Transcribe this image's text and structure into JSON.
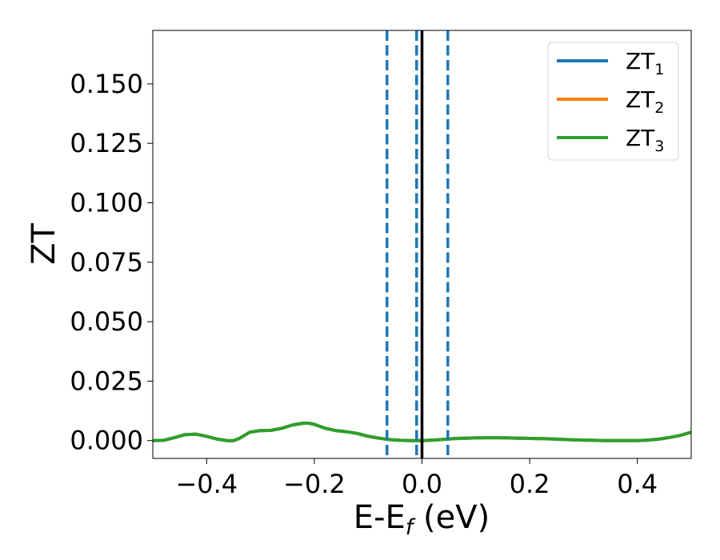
{
  "chart_data": {
    "type": "line",
    "xlabel_main": "E-E",
    "xlabel_sub": "f",
    "xlabel_unit": " (eV)",
    "ylabel": "ZT",
    "xlim": [
      -0.5,
      0.5
    ],
    "ylim": [
      -0.0075,
      0.1725
    ],
    "xticks": [
      -0.4,
      -0.2,
      0.0,
      0.2,
      0.4
    ],
    "xtick_labels": [
      "−0.4",
      "−0.2",
      "0.0",
      "0.2",
      "0.4"
    ],
    "yticks": [
      0.0,
      0.025,
      0.05,
      0.075,
      0.1,
      0.125,
      0.15
    ],
    "ytick_labels": [
      "0.000",
      "0.025",
      "0.050",
      "0.075",
      "0.100",
      "0.125",
      "0.150"
    ],
    "grid": false,
    "legend_position": "top-right",
    "x": [
      -0.5,
      -0.48,
      -0.46,
      -0.44,
      -0.42,
      -0.4,
      -0.38,
      -0.36,
      -0.35,
      -0.34,
      -0.32,
      -0.3,
      -0.28,
      -0.26,
      -0.24,
      -0.22,
      -0.21,
      -0.2,
      -0.18,
      -0.16,
      -0.14,
      -0.12,
      -0.1,
      -0.08,
      -0.06,
      -0.04,
      -0.02,
      0.0,
      0.02,
      0.04,
      0.06,
      0.08,
      0.1,
      0.12,
      0.14,
      0.16,
      0.18,
      0.2,
      0.22,
      0.24,
      0.26,
      0.28,
      0.3,
      0.32,
      0.34,
      0.36,
      0.38,
      0.4,
      0.42,
      0.44,
      0.46,
      0.48,
      0.5
    ],
    "series": [
      {
        "name": "ZT",
        "sub": "1",
        "color": "#1f77b4",
        "values": [
          0.0,
          0.0001,
          0.0012,
          0.0025,
          0.0027,
          0.0018,
          0.0006,
          -0.0001,
          0.0,
          0.0008,
          0.0035,
          0.0042,
          0.0043,
          0.0052,
          0.0066,
          0.0073,
          0.0073,
          0.0068,
          0.0052,
          0.0042,
          0.0037,
          0.003,
          0.0018,
          0.001,
          0.0004,
          0.0001,
          0.0,
          0.0,
          0.0002,
          0.0005,
          0.0008,
          0.001,
          0.0011,
          0.0012,
          0.0012,
          0.0011,
          0.001,
          0.0009,
          0.0008,
          0.0007,
          0.0005,
          0.0003,
          0.0002,
          0.0001,
          0.0,
          0.0,
          0.0,
          0.0,
          0.0002,
          0.0006,
          0.0013,
          0.0022,
          0.0035
        ]
      },
      {
        "name": "ZT",
        "sub": "2",
        "color": "#ff7f0e",
        "values": [
          0.0,
          0.0001,
          0.0012,
          0.0025,
          0.0027,
          0.0018,
          0.0006,
          -0.0001,
          0.0,
          0.0008,
          0.0035,
          0.0042,
          0.0043,
          0.0052,
          0.0066,
          0.0073,
          0.0073,
          0.0068,
          0.0052,
          0.0042,
          0.0037,
          0.003,
          0.0018,
          0.001,
          0.0004,
          0.0001,
          0.0,
          0.0,
          0.0002,
          0.0005,
          0.0008,
          0.001,
          0.0011,
          0.0012,
          0.0012,
          0.0011,
          0.001,
          0.0009,
          0.0008,
          0.0007,
          0.0005,
          0.0003,
          0.0002,
          0.0001,
          0.0,
          0.0,
          0.0,
          0.0,
          0.0002,
          0.0006,
          0.0013,
          0.0022,
          0.0035
        ]
      },
      {
        "name": "ZT",
        "sub": "3",
        "color": "#2ca02c",
        "values": [
          0.0,
          0.0001,
          0.0012,
          0.0025,
          0.0027,
          0.0018,
          0.0006,
          -0.0001,
          0.0,
          0.0008,
          0.0035,
          0.0042,
          0.0043,
          0.0052,
          0.0066,
          0.0073,
          0.0073,
          0.0068,
          0.0052,
          0.0042,
          0.0037,
          0.003,
          0.0018,
          0.001,
          0.0004,
          0.0001,
          0.0,
          0.0,
          0.0002,
          0.0005,
          0.0008,
          0.001,
          0.0011,
          0.0012,
          0.0012,
          0.0011,
          0.001,
          0.0009,
          0.0008,
          0.0007,
          0.0005,
          0.0003,
          0.0002,
          0.0001,
          0.0,
          0.0,
          0.0,
          0.0,
          0.0002,
          0.0006,
          0.0013,
          0.0022,
          0.0035
        ]
      }
    ],
    "vlines": [
      {
        "x": -0.065,
        "style": "dashed",
        "color": "#1f77b4"
      },
      {
        "x": -0.01,
        "style": "dashed",
        "color": "#1f77b4"
      },
      {
        "x": 0.048,
        "style": "dashed",
        "color": "#1f77b4"
      },
      {
        "x": 0.0,
        "style": "solid",
        "color": "#000000"
      }
    ]
  }
}
